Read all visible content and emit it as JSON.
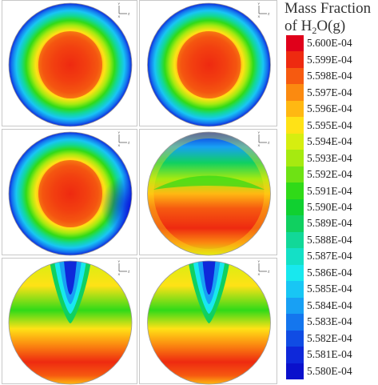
{
  "legend": {
    "title_line1": "Mass Fraction",
    "title_line2_prefix": "of H",
    "title_sub": "2",
    "title_line2_suffix": "O(g)",
    "entries": [
      {
        "label": "5.600E-04",
        "color": "#e0001a"
      },
      {
        "label": "5.599E-04",
        "color": "#ee2a10"
      },
      {
        "label": "5.598E-04",
        "color": "#f65a10"
      },
      {
        "label": "5.597E-04",
        "color": "#fb8a10"
      },
      {
        "label": "5.596E-04",
        "color": "#ffb812"
      },
      {
        "label": "5.595E-04",
        "color": "#ffe216"
      },
      {
        "label": "5.594E-04",
        "color": "#d6ee10"
      },
      {
        "label": "5.593E-04",
        "color": "#a6ea10"
      },
      {
        "label": "5.592E-04",
        "color": "#6ee214"
      },
      {
        "label": "5.591E-04",
        "color": "#30da18"
      },
      {
        "label": "5.590E-04",
        "color": "#10d030"
      },
      {
        "label": "5.589E-04",
        "color": "#10d060"
      },
      {
        "label": "5.588E-04",
        "color": "#12d898"
      },
      {
        "label": "5.587E-04",
        "color": "#14e0c6"
      },
      {
        "label": "5.586E-04",
        "color": "#18e8ee"
      },
      {
        "label": "5.585E-04",
        "color": "#18c6f4"
      },
      {
        "label": "5.584E-04",
        "color": "#18a0f4"
      },
      {
        "label": "5.583E-04",
        "color": "#1476ee"
      },
      {
        "label": "5.582E-04",
        "color": "#104ce4"
      },
      {
        "label": "5.581E-04",
        "color": "#0e28da"
      },
      {
        "label": "5.580E-04",
        "color": "#0a10cc"
      }
    ]
  },
  "panels": [
    {
      "pattern": "center-hot",
      "triad_labels": {
        "y": "Y",
        "z": "Z",
        "x": "X"
      }
    },
    {
      "pattern": "center-hot",
      "triad_labels": {
        "y": "Y",
        "z": "Z",
        "x": "X"
      }
    },
    {
      "pattern": "center-hot-offset",
      "triad_labels": {
        "y": "Y",
        "z": "Z",
        "x": "X"
      }
    },
    {
      "pattern": "top-cold-band",
      "triad_labels": {
        "y": "Y",
        "z": "Z",
        "x": "X"
      }
    },
    {
      "pattern": "top-plume",
      "triad_labels": {
        "y": "Y",
        "z": "Z",
        "x": "X"
      }
    },
    {
      "pattern": "top-plume",
      "triad_labels": {
        "y": "Y",
        "z": "Z",
        "x": "X"
      }
    }
  ]
}
